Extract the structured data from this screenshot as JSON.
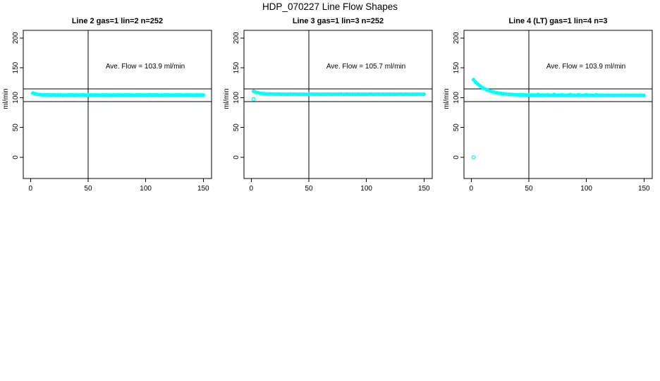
{
  "title": "HDP_070227  Line Flow Shapes",
  "axes": {
    "xticks": [
      0,
      50,
      100,
      150
    ],
    "yticks": [
      0,
      50,
      100,
      150,
      200
    ],
    "ylabel": "ml/min"
  },
  "ref_lines": {
    "horizontal": [
      114.4,
      93.6
    ],
    "vertical": 50
  },
  "point_color": "#00FFFF",
  "chart_data": [
    {
      "type": "scatter",
      "title": "Line 2 gas=1 lin=2 n=252",
      "annotation": "Ave. Flow =  103.9  ml/min",
      "ave_flow_ml_min": 103.9,
      "n": 252,
      "xlabel": "",
      "ylabel": "ml/min",
      "xlim": [
        0,
        150
      ],
      "ylim": [
        0,
        200
      ],
      "x_start": 2,
      "x_step": 2,
      "y": [
        107.7,
        106.5,
        105.7,
        105.2,
        104.9,
        104.8,
        104.7,
        104.6,
        104.3,
        104.7,
        104.4,
        104.6,
        104.5,
        104.3,
        104.6,
        104.4,
        104.7,
        104.5,
        104.3,
        104.6,
        104.5,
        104.4,
        104.6,
        104.3,
        104.5,
        104.7,
        104.4,
        104.5,
        104.6,
        104.3,
        104.5,
        104.4,
        104.6,
        104.5,
        104.3,
        104.6,
        104.4,
        104.5,
        104.7,
        104.3,
        104.5,
        104.6,
        104.4,
        104.5,
        104.3,
        104.6,
        104.5,
        104.4,
        104.6,
        104.3,
        104.5,
        104.7,
        104.4,
        104.5,
        104.6,
        104.3,
        104.5,
        104.4,
        104.6,
        104.5,
        104.3,
        104.6,
        104.4,
        104.5,
        104.7,
        104.3,
        104.5,
        104.6,
        104.4,
        104.5,
        104.3,
        104.6,
        104.5,
        104.4,
        104.5
      ],
      "outliers": [],
      "extra_points": []
    },
    {
      "type": "scatter",
      "title": "Line 3 gas=1 lin=3 n=252",
      "annotation": "Ave. Flow =  105.7  ml/min",
      "ave_flow_ml_min": 105.7,
      "n": 252,
      "xlabel": "",
      "ylabel": "ml/min",
      "xlim": [
        0,
        150
      ],
      "ylim": [
        0,
        200
      ],
      "x_start": 2,
      "x_step": 2,
      "y": [
        110.8,
        109.1,
        108.0,
        107.3,
        106.8,
        106.5,
        106.2,
        106.1,
        106.0,
        105.9,
        105.8,
        106.0,
        105.7,
        105.9,
        105.6,
        105.8,
        106.0,
        105.7,
        105.9,
        105.6,
        105.8,
        105.7,
        105.9,
        105.6,
        105.8,
        106.0,
        105.7,
        105.8,
        105.9,
        105.6,
        105.8,
        105.7,
        105.9,
        105.8,
        105.6,
        105.9,
        105.7,
        105.8,
        106.0,
        105.6,
        105.8,
        105.9,
        105.7,
        105.8,
        105.6,
        105.9,
        105.8,
        105.7,
        105.9,
        105.6,
        105.8,
        106.0,
        105.7,
        105.8,
        105.9,
        105.6,
        105.8,
        105.7,
        105.9,
        105.8,
        105.6,
        105.9,
        105.7,
        105.8,
        106.0,
        105.6,
        105.8,
        105.9,
        105.7,
        105.8,
        105.6,
        105.9,
        105.8,
        105.7,
        105.8
      ],
      "outliers": [
        [
          2,
          97.5
        ]
      ],
      "extra_points": []
    },
    {
      "type": "scatter",
      "title": "Line 4 (LT) gas=1 lin=4 n=3",
      "annotation": "Ave. Flow =  103.9  ml/min",
      "ave_flow_ml_min": 103.9,
      "n": 3,
      "xlabel": "",
      "ylabel": "ml/min",
      "xlim": [
        0,
        150
      ],
      "ylim": [
        0,
        200
      ],
      "x_start": 2,
      "x_step": 2,
      "y": [
        130.0,
        125.7,
        122.1,
        119.1,
        116.6,
        114.5,
        112.8,
        111.3,
        110.1,
        109.1,
        108.3,
        107.5,
        107.0,
        106.5,
        106.1,
        105.7,
        105.4,
        105.2,
        105.0,
        104.8,
        104.7,
        104.6,
        104.5,
        104.4,
        104.3,
        104.5,
        104.2,
        104.4,
        104.1,
        104.3,
        104.5,
        104.2,
        104.0,
        104.3,
        104.1,
        104.4,
        104.2,
        104.0,
        104.3,
        104.1,
        103.9,
        104.2,
        104.0,
        104.3,
        103.9,
        104.1,
        104.2,
        103.8,
        104.0,
        104.2,
        103.9,
        104.1,
        103.8,
        104.0,
        104.2,
        103.9,
        104.1,
        103.8,
        104.0,
        103.9,
        104.1,
        103.8,
        104.0,
        103.9,
        104.1,
        103.8,
        103.9,
        104.0,
        103.8,
        104.0,
        103.9,
        103.8,
        104.0,
        103.9,
        103.8
      ],
      "outliers": [
        [
          2,
          0
        ]
      ],
      "extra_points": [
        [
          58,
          105.4
        ],
        [
          66,
          105.1
        ],
        [
          72,
          105.5
        ],
        [
          79,
          105.0
        ],
        [
          86,
          105.3
        ],
        [
          93,
          104.9
        ],
        [
          100,
          105.2
        ],
        [
          108,
          104.8
        ]
      ]
    }
  ]
}
